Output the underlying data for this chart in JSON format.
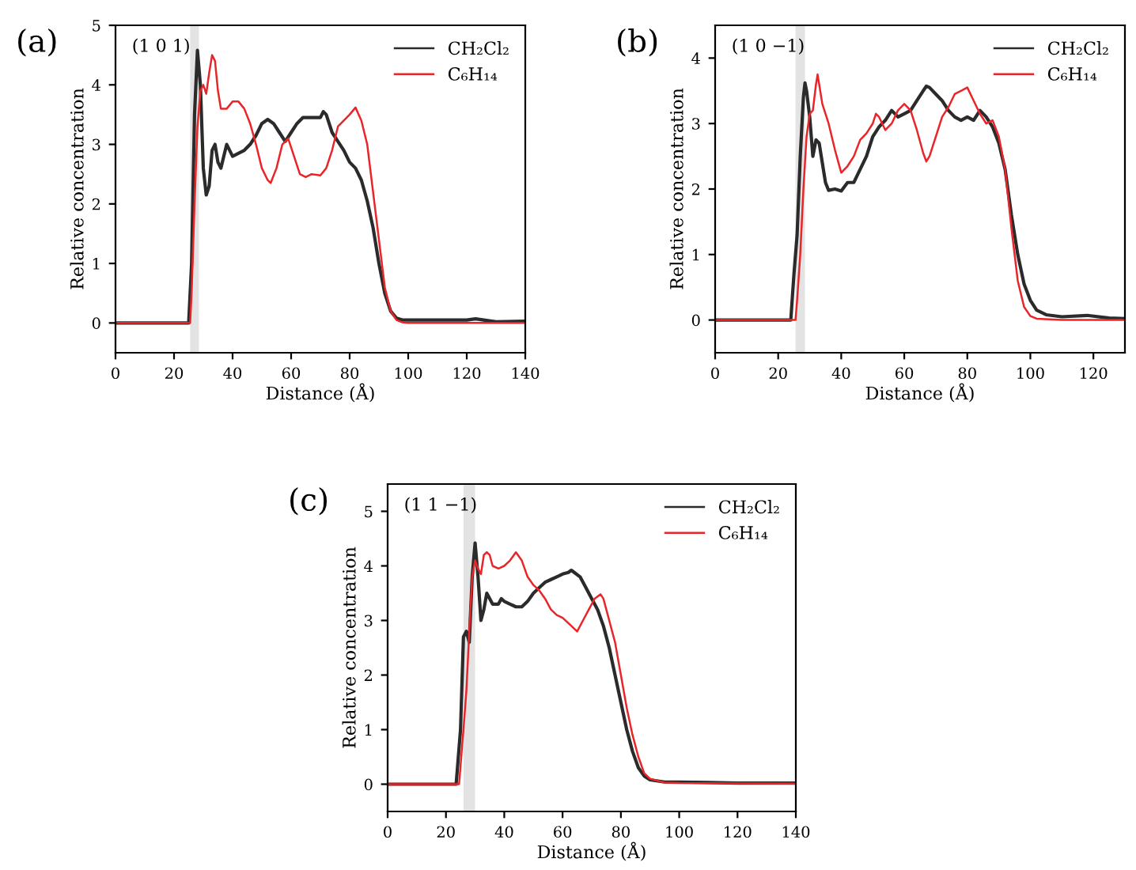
{
  "chart_data": [
    {
      "type": "line",
      "title": "(a)",
      "annotations": [
        "(1 0 1)"
      ],
      "xlabel": "Distance (Å)",
      "ylabel": "Relative concentration",
      "xlim": [
        0,
        140
      ],
      "ylim": [
        -0.5,
        5
      ],
      "xticks": [
        0,
        20,
        40,
        60,
        80,
        100,
        120,
        140
      ],
      "yticks": [
        0,
        1,
        2,
        3,
        4,
        5
      ],
      "legend": "top right",
      "grid": false,
      "line_style": "solid",
      "marker": "none",
      "bands": [
        {
          "axis": "x",
          "from": 25.5,
          "to": 28.5,
          "color": "#e3e3e3"
        }
      ],
      "series": [
        {
          "name": "CH₂Cl₂",
          "color": "#2b2b2b",
          "x": [
            0,
            25,
            26,
            27,
            28,
            29,
            30,
            31,
            32,
            33,
            34,
            35,
            36,
            37,
            38,
            39,
            40,
            42,
            44,
            46,
            48,
            50,
            52,
            54,
            56,
            58,
            60,
            62,
            64,
            66,
            68,
            70,
            71,
            72,
            74,
            76,
            78,
            80,
            82,
            84,
            86,
            88,
            90,
            92,
            94,
            96,
            98,
            100,
            110,
            120,
            123,
            130,
            140
          ],
          "values": [
            0,
            0,
            1.0,
            3.5,
            4.58,
            4.0,
            2.6,
            2.15,
            2.3,
            2.9,
            3.0,
            2.7,
            2.6,
            2.8,
            3.0,
            2.9,
            2.8,
            2.85,
            2.9,
            3.0,
            3.15,
            3.35,
            3.42,
            3.35,
            3.2,
            3.05,
            3.2,
            3.35,
            3.45,
            3.45,
            3.45,
            3.45,
            3.55,
            3.5,
            3.2,
            3.05,
            2.9,
            2.7,
            2.6,
            2.4,
            2.05,
            1.6,
            1.0,
            0.5,
            0.2,
            0.08,
            0.05,
            0.05,
            0.05,
            0.05,
            0.07,
            0.02,
            0.03
          ]
        },
        {
          "name": "C₆H₁₄",
          "color": "#e8262a",
          "x": [
            0,
            25.5,
            26,
            27,
            28,
            29,
            30,
            31,
            32,
            33,
            34,
            35,
            36,
            38,
            40,
            42,
            44,
            46,
            48,
            50,
            52,
            53,
            55,
            57,
            59,
            61,
            63,
            65,
            67,
            70,
            72,
            74,
            76,
            78,
            80,
            82,
            84,
            86,
            88,
            90,
            92,
            94,
            96,
            98,
            100,
            140
          ],
          "values": [
            0,
            0,
            0.5,
            2.0,
            3.3,
            3.9,
            4.0,
            3.85,
            4.2,
            4.5,
            4.4,
            3.9,
            3.6,
            3.6,
            3.72,
            3.72,
            3.6,
            3.35,
            3.0,
            2.6,
            2.4,
            2.35,
            2.6,
            3.0,
            3.1,
            2.8,
            2.5,
            2.45,
            2.5,
            2.48,
            2.6,
            2.9,
            3.3,
            3.4,
            3.5,
            3.62,
            3.4,
            3.0,
            2.2,
            1.4,
            0.6,
            0.2,
            0.05,
            0.01,
            0,
            0
          ]
        }
      ]
    },
    {
      "type": "line",
      "title": "(b)",
      "annotations": [
        "(1 0 −1)"
      ],
      "xlabel": "Distance (Å)",
      "ylabel": "Relative concentration",
      "xlim": [
        0,
        130
      ],
      "ylim": [
        -0.5,
        4.5
      ],
      "xticks": [
        0,
        20,
        40,
        60,
        80,
        100,
        120
      ],
      "yticks": [
        0,
        1,
        2,
        3,
        4
      ],
      "legend": "top right",
      "grid": false,
      "line_style": "solid",
      "marker": "none",
      "bands": [
        {
          "axis": "x",
          "from": 25.5,
          "to": 28.5,
          "color": "#e3e3e3"
        }
      ],
      "series": [
        {
          "name": "CH₂Cl₂",
          "color": "#2b2b2b",
          "x": [
            0,
            24,
            25,
            26,
            27,
            28,
            28.5,
            29,
            30,
            31,
            32,
            33,
            34,
            35,
            36,
            38,
            40,
            42,
            44,
            46,
            48,
            50,
            52,
            54,
            56,
            58,
            60,
            62,
            64,
            66,
            67,
            68,
            70,
            72,
            74,
            76,
            78,
            80,
            82,
            84,
            86,
            88,
            90,
            92,
            94,
            96,
            98,
            100,
            102,
            105,
            110,
            118,
            125,
            130
          ],
          "values": [
            0,
            0,
            0.7,
            1.3,
            2.5,
            3.4,
            3.62,
            3.5,
            3.1,
            2.5,
            2.75,
            2.7,
            2.4,
            2.1,
            1.98,
            2.0,
            1.97,
            2.1,
            2.1,
            2.3,
            2.5,
            2.8,
            2.95,
            3.05,
            3.2,
            3.1,
            3.15,
            3.2,
            3.35,
            3.5,
            3.57,
            3.55,
            3.45,
            3.35,
            3.2,
            3.1,
            3.05,
            3.1,
            3.05,
            3.2,
            3.1,
            2.95,
            2.7,
            2.3,
            1.6,
            1.0,
            0.55,
            0.3,
            0.15,
            0.08,
            0.05,
            0.07,
            0.03,
            0.02
          ]
        },
        {
          "name": "C₆H₁₄",
          "color": "#e8262a",
          "x": [
            0,
            25.5,
            26,
            27,
            28,
            29,
            30,
            31,
            32,
            32.5,
            33,
            34,
            36,
            38,
            40,
            42,
            44,
            46,
            48,
            50,
            51,
            52,
            54,
            56,
            58,
            60,
            62,
            64,
            66,
            67,
            68,
            70,
            72,
            74,
            76,
            78,
            80,
            82,
            84,
            86,
            88,
            90,
            92,
            94,
            96,
            98,
            100,
            102,
            110,
            130
          ],
          "values": [
            0,
            0,
            0.3,
            1.0,
            2.0,
            2.8,
            3.15,
            3.2,
            3.6,
            3.75,
            3.6,
            3.3,
            3.0,
            2.6,
            2.25,
            2.35,
            2.5,
            2.75,
            2.85,
            3.0,
            3.15,
            3.1,
            2.9,
            3.0,
            3.2,
            3.3,
            3.2,
            2.9,
            2.55,
            2.42,
            2.5,
            2.8,
            3.1,
            3.25,
            3.45,
            3.5,
            3.55,
            3.35,
            3.15,
            3.0,
            3.05,
            2.8,
            2.3,
            1.4,
            0.6,
            0.2,
            0.06,
            0.02,
            0,
            0
          ]
        }
      ]
    },
    {
      "type": "line",
      "title": "(c)",
      "annotations": [
        "(1 1 −1)"
      ],
      "xlabel": "Distance (Å)",
      "ylabel": "Relative concentration",
      "xlim": [
        0,
        140
      ],
      "ylim": [
        -0.5,
        5.5
      ],
      "xticks": [
        0,
        20,
        40,
        60,
        80,
        100,
        120,
        140
      ],
      "yticks": [
        0,
        1,
        2,
        3,
        4,
        5
      ],
      "legend": "top right",
      "grid": false,
      "line_style": "solid",
      "marker": "none",
      "bands": [
        {
          "axis": "x",
          "from": 26,
          "to": 30,
          "color": "#e3e3e3"
        }
      ],
      "series": [
        {
          "name": "CH₂Cl₂",
          "color": "#2b2b2b",
          "x": [
            0,
            23.5,
            25,
            26,
            27,
            28,
            29,
            30,
            31,
            32,
            33,
            34,
            36,
            38,
            39,
            40,
            42,
            44,
            46,
            48,
            50,
            52,
            54,
            56,
            58,
            60,
            62,
            63,
            64,
            66,
            68,
            70,
            72,
            74,
            76,
            78,
            80,
            82,
            84,
            86,
            88,
            90,
            95,
            100,
            110,
            120,
            140
          ],
          "values": [
            0,
            0,
            1.0,
            2.7,
            2.8,
            2.6,
            3.8,
            4.42,
            3.8,
            3.0,
            3.2,
            3.5,
            3.3,
            3.3,
            3.4,
            3.35,
            3.3,
            3.25,
            3.25,
            3.35,
            3.5,
            3.6,
            3.7,
            3.75,
            3.8,
            3.85,
            3.88,
            3.92,
            3.88,
            3.8,
            3.6,
            3.4,
            3.2,
            2.9,
            2.5,
            2.0,
            1.5,
            1.0,
            0.6,
            0.3,
            0.15,
            0.08,
            0.04,
            0.04,
            0.03,
            0.02,
            0.02
          ]
        },
        {
          "name": "C₆H₁₄",
          "color": "#e8262a",
          "x": [
            0,
            24.5,
            26,
            27,
            28,
            29,
            30,
            31,
            32,
            33,
            34,
            35,
            36,
            38,
            40,
            42,
            44,
            46,
            48,
            50,
            52,
            54,
            56,
            58,
            60,
            62,
            64,
            65,
            67,
            69,
            71,
            73,
            74,
            76,
            78,
            80,
            82,
            84,
            86,
            88,
            90,
            95,
            100,
            140
          ],
          "values": [
            0,
            0,
            1.0,
            1.7,
            2.8,
            3.8,
            4.1,
            3.95,
            3.85,
            4.2,
            4.25,
            4.2,
            4.0,
            3.95,
            4.0,
            4.1,
            4.25,
            4.1,
            3.8,
            3.65,
            3.55,
            3.4,
            3.2,
            3.1,
            3.05,
            2.95,
            2.85,
            2.8,
            3.0,
            3.2,
            3.4,
            3.48,
            3.4,
            3.0,
            2.6,
            2.0,
            1.4,
            0.9,
            0.5,
            0.2,
            0.1,
            0.03,
            0.02,
            0.01
          ]
        }
      ]
    }
  ]
}
